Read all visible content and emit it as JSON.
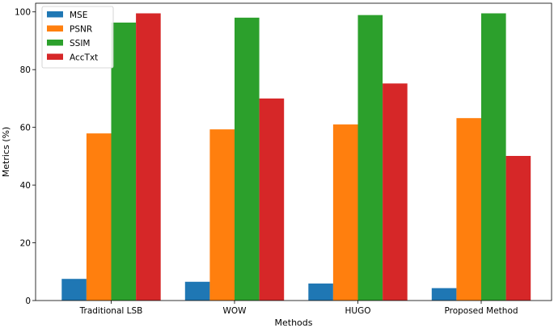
{
  "chart_data": {
    "type": "bar",
    "title": "",
    "xlabel": "Methods",
    "ylabel": "Metrics (%)",
    "ylim": [
      0,
      103
    ],
    "yticks": [
      0,
      20,
      40,
      60,
      80,
      100
    ],
    "grid": false,
    "legend_position": "top-left",
    "categories": [
      "Traditional LSB",
      "WOW",
      "HUGO",
      "Proposed Method"
    ],
    "series": [
      {
        "name": "MSE",
        "color": "#1f77b4",
        "values": [
          7.5,
          6.5,
          5.9,
          4.3
        ]
      },
      {
        "name": "PSNR",
        "color": "#ff7f0e",
        "values": [
          57.9,
          59.3,
          61.0,
          63.2
        ]
      },
      {
        "name": "SSIM",
        "color": "#2ca02c",
        "values": [
          96.3,
          98.0,
          98.9,
          99.5
        ]
      },
      {
        "name": "AccTxt",
        "color": "#d62728",
        "values": [
          99.5,
          70.0,
          75.2,
          50.1
        ]
      }
    ]
  }
}
